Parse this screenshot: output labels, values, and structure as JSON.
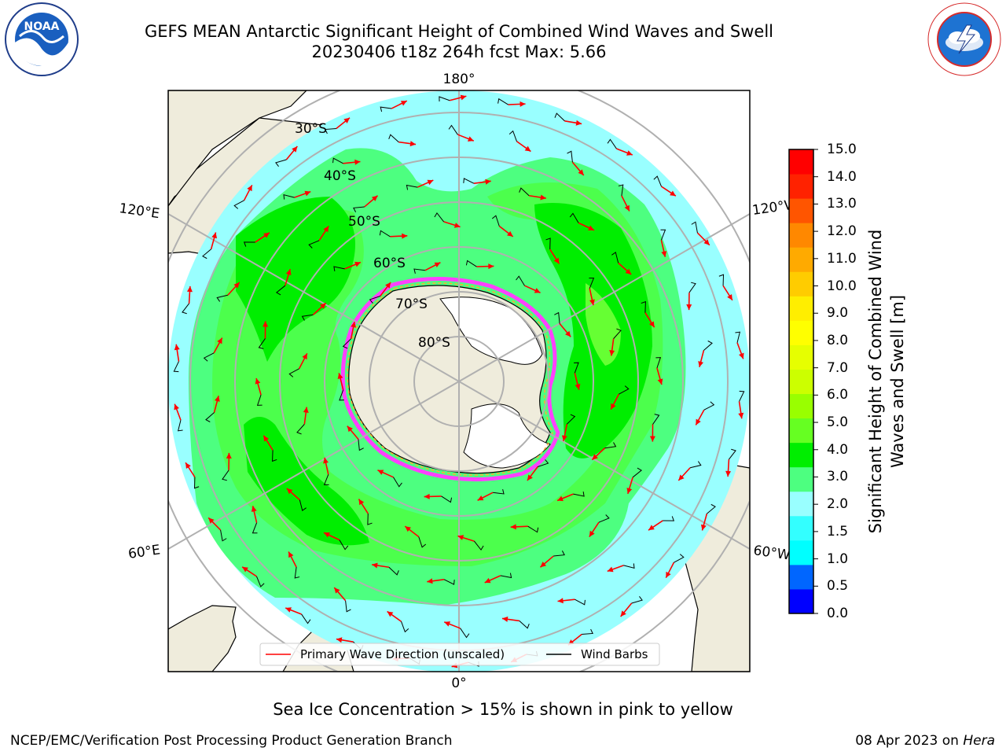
{
  "title": {
    "line1": "GEFS MEAN Antarctic Significant Height of Combined Wind Waves and Swell",
    "line2": "20230406 t18z 264h fcst   Max: 5.66"
  },
  "map": {
    "longitude_labels": {
      "top": "180°",
      "bottom": "0°",
      "upper_left": "120°E",
      "upper_right": "120°W",
      "lower_left": "60°E",
      "lower_right": "60°W"
    },
    "latitude_labels": [
      "30°S",
      "40°S",
      "50°S",
      "60°S",
      "70°S",
      "80°S"
    ],
    "legend": {
      "wave_direction": "Primary Wave Direction (unscaled)",
      "wind_barbs": "Wind Barbs"
    },
    "colors": {
      "land": "#efecdc",
      "ice_edge": "#ff40ff",
      "wave_lt2": "#99ffff",
      "wave_2_3": "#4dff80",
      "wave_3_4": "#4cff4c",
      "wave_4_5": "#00ee00",
      "wave_5_6": "#66ff33",
      "arrow": "#ff0000",
      "barb": "#000000",
      "grid": "#b0b0b0"
    }
  },
  "colorbar": {
    "ticks": [
      "15.0",
      "14.0",
      "13.0",
      "12.0",
      "11.0",
      "10.0",
      "9.0",
      "8.0",
      "7.0",
      "6.0",
      "5.0",
      "4.0",
      "3.0",
      "2.0",
      "1.5",
      "1.0",
      "0.5",
      "0.0"
    ],
    "label": "Significant Height of Combined Wind Waves and Swell [m]",
    "colors": [
      "#0000ff",
      "#0066ff",
      "#00ffff",
      "#33ffff",
      "#99ffff",
      "#4dff80",
      "#00ee00",
      "#66ff22",
      "#99ff00",
      "#ccff00",
      "#e6ff00",
      "#ffff00",
      "#ffee00",
      "#ffcc00",
      "#ffaa00",
      "#ff8800",
      "#ff5500",
      "#ff2200",
      "#ff0000"
    ]
  },
  "caption": "Sea Ice Concentration > 15% is shown in pink to yellow",
  "footer": {
    "left": "NCEP/EMC/Verification Post Processing Product Generation Branch",
    "date": "08 Apr 2023 on ",
    "machine": "Hera"
  }
}
